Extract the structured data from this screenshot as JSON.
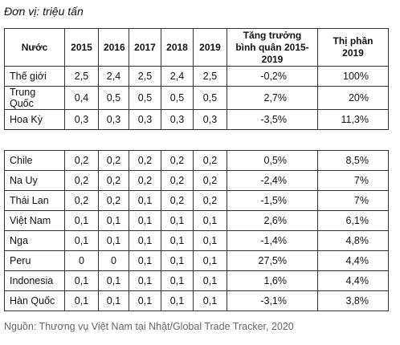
{
  "unit": "Đơn vị: triệu tấn",
  "table": {
    "header": [
      "Nước",
      "2015",
      "2016",
      "2017",
      "2018",
      "2019",
      "Tăng trưởng bình quân 2015-2019",
      "Thị phần 2019"
    ],
    "sections": [
      [
        [
          "Thế giới",
          "2,5",
          "2,4",
          "2,5",
          "2,4",
          "2,5",
          "-0,2%",
          "100%"
        ],
        [
          "Trung Quốc",
          "0,4",
          "0,5",
          "0,5",
          "0,5",
          "0,5",
          "2,7%",
          "20%"
        ],
        [
          "Hoa Kỳ",
          "0,3",
          "0,3",
          "0,3",
          "0,3",
          "0,3",
          "-3,5%",
          "11,3%"
        ]
      ],
      [
        [
          "Chile",
          "0,2",
          "0,2",
          "0,2",
          "0,2",
          "0,2",
          "0,5%",
          "8,5%"
        ],
        [
          "Na Uy",
          "0,2",
          "0,2",
          "0,2",
          "0,2",
          "0,2",
          "-2,4%",
          "7%"
        ],
        [
          "Thái Lan",
          "0,2",
          "0,2",
          "0,1",
          "0,2",
          "0,2",
          "-1,5%",
          "7%"
        ],
        [
          "Việt Nam",
          "0,1",
          "0,1",
          "0,1",
          "0,1",
          "0,1",
          "2,6%",
          "6,1%"
        ],
        [
          "Nga",
          "0,1",
          "0,1",
          "0,1",
          "0,1",
          "0,1",
          "-1,4%",
          "4,8%"
        ],
        [
          "Peru",
          "0",
          "0",
          "0,1",
          "0,1",
          "0,1",
          "27,5%",
          "4,4%"
        ],
        [
          "Indonesia",
          "0,1",
          "0,1",
          "0,1",
          "0,1",
          "0,1",
          "1,6%",
          "4,4%"
        ],
        [
          "Hàn Quốc",
          "0,1",
          "0,1",
          "0,1",
          "0,1",
          "0,1",
          "-3,1%",
          "3,8%"
        ]
      ]
    ]
  },
  "source": "Nguồn: Thương vụ Việt Nam tại Nhật/Global Trade Tracker, 2020"
}
